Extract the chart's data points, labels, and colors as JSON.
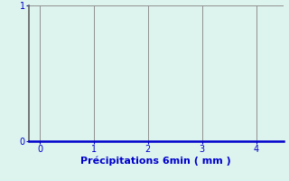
{
  "title": "",
  "xlabel": "Précipitations 6min ( mm )",
  "ylabel": "",
  "xlim": [
    -0.2,
    4.5
  ],
  "ylim": [
    0,
    1.0
  ],
  "yticks": [
    0,
    1
  ],
  "xticks": [
    0,
    1,
    2,
    3,
    4
  ],
  "background_color": "#ddf4ee",
  "axes_bg_color": "#ddf4ee",
  "xlabel_color": "#0000cc",
  "xlabel_fontsize": 8,
  "tick_color": "#0000cc",
  "tick_fontsize": 7,
  "ytick_color": "#0000cc",
  "ytick_fontsize": 7,
  "xaxis_line_color": "#0000cc",
  "xaxis_linewidth": 1.8,
  "yaxis_line_color": "#606060",
  "yaxis_linewidth": 1.2,
  "grid_color": "#909090",
  "grid_linewidth": 0.7,
  "vline_positions": [
    0,
    1,
    2,
    3,
    4
  ],
  "vline_color": "#909090",
  "vline_linewidth": 0.7
}
